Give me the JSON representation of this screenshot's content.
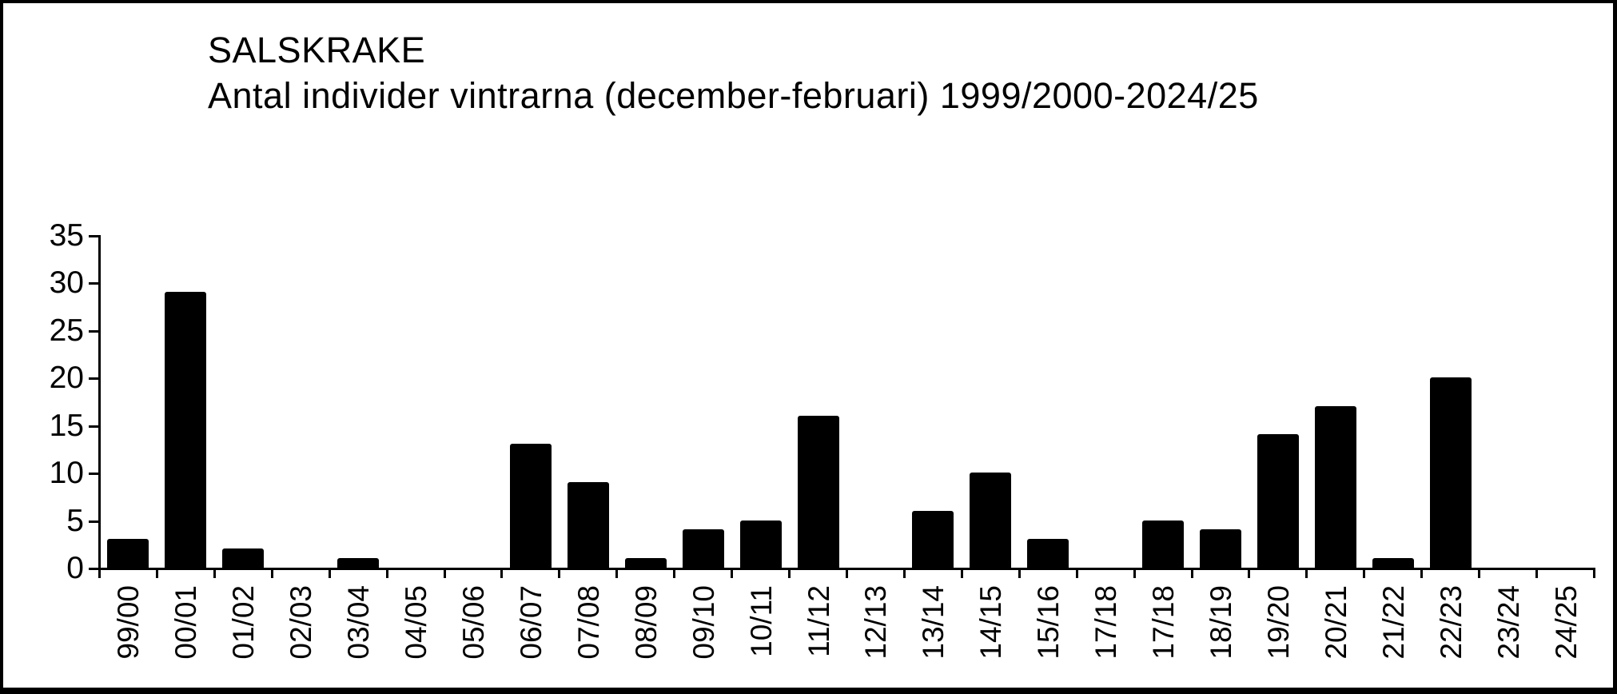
{
  "title": "SALSKRAKE",
  "subtitle": "Antal individer vintrarna (december-februari) 1999/2000-2024/25",
  "chart_data": {
    "type": "bar",
    "title": "SALSKRAKE",
    "subtitle": "Antal individer vintrarna (december-februari) 1999/2000-2024/25",
    "categories": [
      "99/00",
      "00/01",
      "01/02",
      "02/03",
      "03/04",
      "04/05",
      "05/06",
      "06/07",
      "07/08",
      "08/09",
      "09/10",
      "10/11",
      "11/12",
      "12/13",
      "13/14",
      "14/15",
      "15/16",
      "17/18",
      "17/18",
      "18/19",
      "19/20",
      "20/21",
      "21/22",
      "22/23",
      "23/24",
      "24/25"
    ],
    "values": [
      3,
      29,
      2,
      0,
      1,
      0,
      0,
      13,
      9,
      1,
      4,
      5,
      16,
      0,
      6,
      10,
      3,
      0,
      5,
      4,
      14,
      17,
      1,
      20,
      0,
      0
    ],
    "xlabel": "",
    "ylabel": "",
    "yticks": [
      0,
      5,
      10,
      15,
      20,
      25,
      30,
      35
    ],
    "ylim": [
      0,
      35
    ],
    "grid": false,
    "legend": false,
    "bar_color": "#000000",
    "axis_color": "#000000",
    "background_color": "#ffffff"
  }
}
